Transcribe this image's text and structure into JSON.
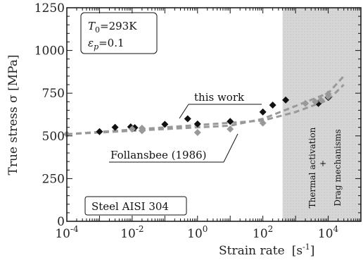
{
  "chart_data": {
    "type": "scatter",
    "x_scale": "log",
    "xlim": [
      0.0001,
      100000
    ],
    "ylim": [
      0,
      1250
    ],
    "x_ticks": [
      {
        "value": 0.0001,
        "base": "10",
        "exp": "-4"
      },
      {
        "value": 0.01,
        "base": "10",
        "exp": "-2"
      },
      {
        "value": 1,
        "base": "10",
        "exp": "0"
      },
      {
        "value": 100,
        "base": "10",
        "exp": "2"
      },
      {
        "value": 10000,
        "base": "10",
        "exp": "4"
      }
    ],
    "y_ticks": [
      0,
      250,
      500,
      750,
      1000,
      1250
    ],
    "xlabel": "Strain rate",
    "xlabel_unit": "[s",
    "xlabel_unit_exp": "-1",
    "xlabel_unit_close": "]",
    "ylabel": "True stress  σ  [MPa]",
    "series": [
      {
        "name": "this work",
        "marker": "diamond",
        "color": "#111111",
        "points": [
          {
            "x": 0.001,
            "y": 525
          },
          {
            "x": 0.003,
            "y": 550
          },
          {
            "x": 0.009,
            "y": 553
          },
          {
            "x": 0.012,
            "y": 548
          },
          {
            "x": 0.1,
            "y": 568
          },
          {
            "x": 0.5,
            "y": 600
          },
          {
            "x": 1,
            "y": 570
          },
          {
            "x": 10,
            "y": 585
          },
          {
            "x": 100,
            "y": 640
          },
          {
            "x": 200,
            "y": 680
          },
          {
            "x": 500,
            "y": 710
          },
          {
            "x": 5000,
            "y": 690
          },
          {
            "x": 10000,
            "y": 725
          }
        ]
      },
      {
        "name": "Follansbee (1986)",
        "marker": "diamond",
        "color": "#999999",
        "points": [
          {
            "x": 0.0001,
            "y": 510
          },
          {
            "x": 0.01,
            "y": 540
          },
          {
            "x": 0.02,
            "y": 545
          },
          {
            "x": 0.02,
            "y": 530
          },
          {
            "x": 1,
            "y": 520
          },
          {
            "x": 10,
            "y": 540
          },
          {
            "x": 100,
            "y": 575
          },
          {
            "x": 2000,
            "y": 690
          },
          {
            "x": 4000,
            "y": 700
          },
          {
            "x": 6000,
            "y": 710
          },
          {
            "x": 10000,
            "y": 745
          },
          {
            "x": 10000,
            "y": 730
          }
        ]
      }
    ],
    "fit_lines": [
      {
        "name": "this work",
        "points": [
          {
            "x": 0.0001,
            "y": 510
          },
          {
            "x": 10,
            "y": 560
          },
          {
            "x": 100,
            "y": 600
          },
          {
            "x": 1000,
            "y": 675
          },
          {
            "x": 10000,
            "y": 750
          },
          {
            "x": 30000,
            "y": 850
          }
        ]
      },
      {
        "name": "Follansbee (1986)",
        "points": [
          {
            "x": 0.0001,
            "y": 510
          },
          {
            "x": 100,
            "y": 590
          },
          {
            "x": 1000,
            "y": 640
          },
          {
            "x": 10000,
            "y": 710
          },
          {
            "x": 30000,
            "y": 800
          }
        ]
      }
    ],
    "shaded_region": {
      "x_from": 400,
      "x_to": 100000,
      "labels": [
        "Thermal activation",
        "+",
        "Drag mechanisms"
      ]
    },
    "annotations": {
      "params_line1_symbol": "T",
      "params_line1_sub": "0",
      "params_line1_value": "=293K",
      "params_line2_symbol": "ε",
      "params_line2_sub": "p",
      "params_line2_value": "=0.1",
      "this_work_label": "this work",
      "follansbee_label": "Follansbee (1986)",
      "material_label": "Steel AISI 304"
    },
    "grid": false
  }
}
